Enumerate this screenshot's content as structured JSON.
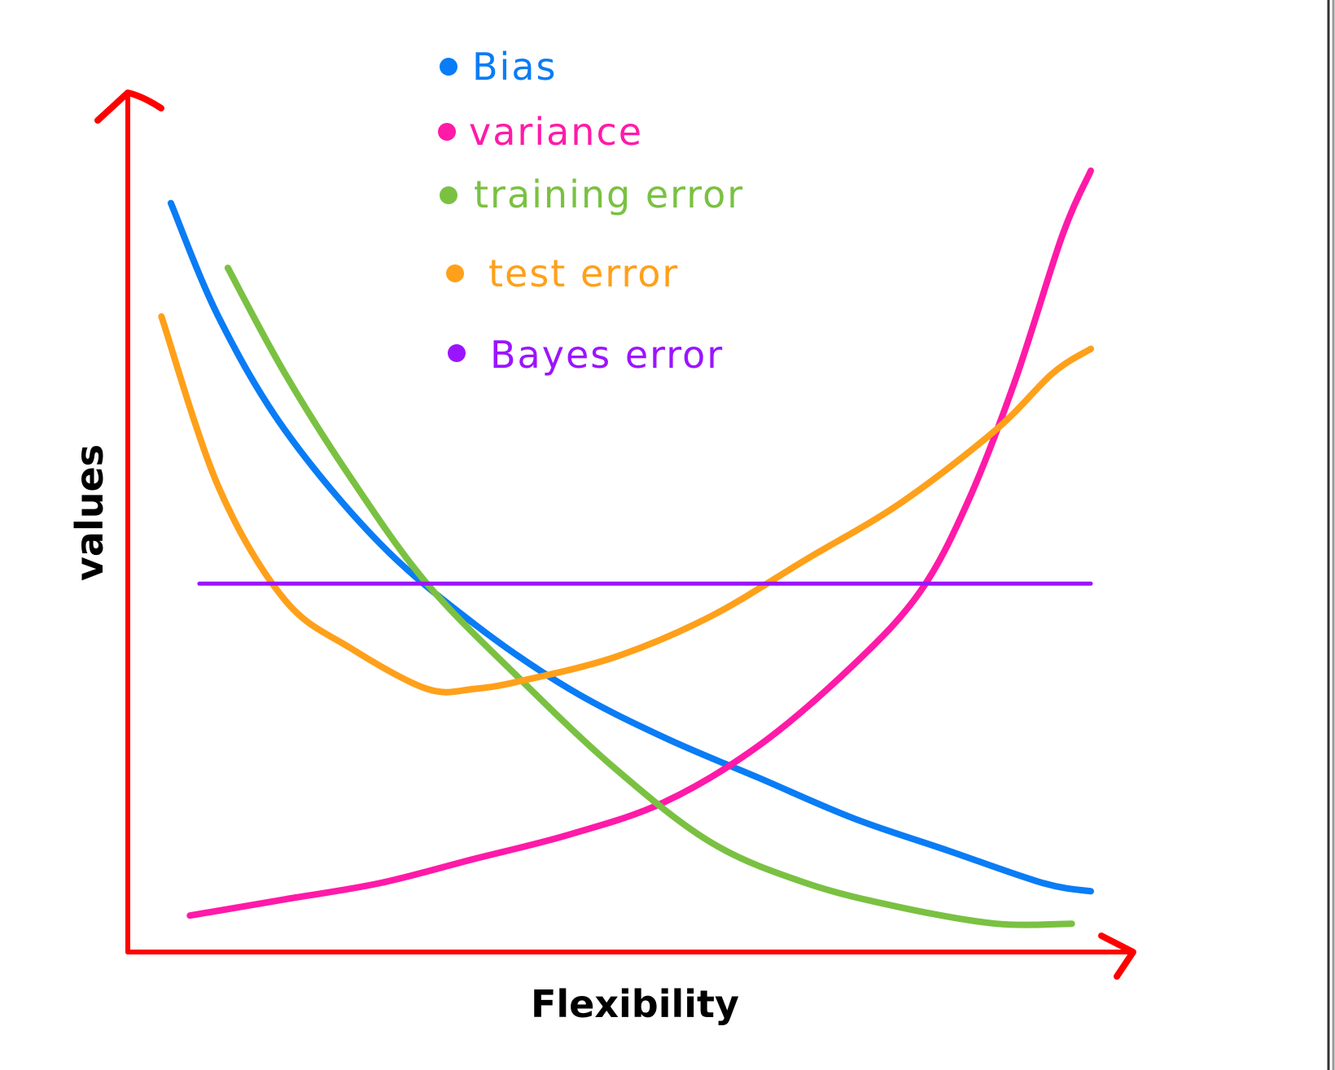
{
  "chart_data": {
    "type": "line",
    "xlabel": "Flexibility",
    "ylabel": "values",
    "grid": false,
    "legend_position": "top-center",
    "xlim": [
      0,
      100
    ],
    "ylim": [
      0,
      100
    ],
    "axis_color": "#ff0000",
    "series": [
      {
        "name": "Bias",
        "color": "#0a7cf5",
        "x": [
          3,
          8,
          15,
          25,
          35,
          45,
          55,
          65,
          75,
          85,
          95,
          100
        ],
        "y": [
          92,
          78,
          64,
          50,
          40,
          32,
          26,
          21,
          16,
          12,
          8,
          7
        ]
      },
      {
        "name": "variance",
        "color": "#ff1aa8",
        "x": [
          5,
          15,
          25,
          35,
          45,
          55,
          65,
          75,
          82,
          87,
          92,
          97,
          100
        ],
        "y": [
          4,
          6,
          8,
          11,
          14,
          18,
          25,
          35,
          44,
          55,
          70,
          88,
          96
        ]
      },
      {
        "name": "training error",
        "color": "#7ac142",
        "x": [
          9,
          15,
          22,
          30,
          40,
          50,
          60,
          70,
          80,
          90,
          98
        ],
        "y": [
          84,
          71,
          58,
          45,
          33,
          22,
          13,
          8,
          5,
          3,
          3
        ]
      },
      {
        "name": "test error",
        "color": "#ffa01a",
        "x": [
          2,
          8,
          15,
          22,
          30,
          35,
          40,
          50,
          60,
          70,
          80,
          90,
          96,
          100
        ],
        "y": [
          78,
          57,
          43,
          37,
          32,
          32,
          33,
          36,
          41,
          48,
          55,
          64,
          71,
          74
        ]
      },
      {
        "name": "Bayes error",
        "color": "#9b14ff",
        "x": [
          6,
          100
        ],
        "y": [
          45,
          45
        ]
      }
    ]
  }
}
